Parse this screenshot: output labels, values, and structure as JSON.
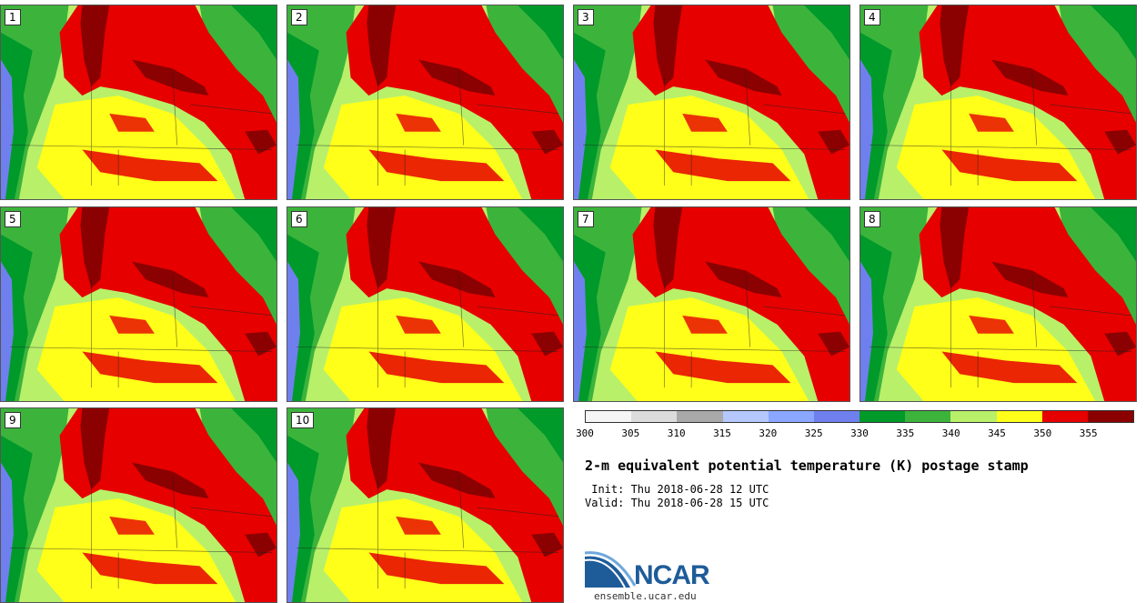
{
  "members": [
    {
      "label": "1"
    },
    {
      "label": "2"
    },
    {
      "label": "3"
    },
    {
      "label": "4"
    },
    {
      "label": "5"
    },
    {
      "label": "6"
    },
    {
      "label": "7"
    },
    {
      "label": "8"
    },
    {
      "label": "9"
    },
    {
      "label": "10"
    }
  ],
  "colorbar": {
    "colors": [
      "#f5f5f5",
      "#dcdcdc",
      "#a9a9a9",
      "#b4c8ff",
      "#8aa6ff",
      "#6f80ee",
      "#009a2a",
      "#3cb43c",
      "#b8f06a",
      "#ffff19",
      "#e60000",
      "#8b0000"
    ],
    "ticks": [
      "300",
      "305",
      "310",
      "315",
      "320",
      "325",
      "330",
      "335",
      "340",
      "345",
      "350",
      "355"
    ]
  },
  "title": "2-m equivalent potential temperature (K) postage stamp",
  "init": " Init: Thu 2018-06-28 12 UTC",
  "valid": "Valid: Thu 2018-06-28 15 UTC",
  "logo_text": "NCAR",
  "site": "ensemble.ucar.edu"
}
